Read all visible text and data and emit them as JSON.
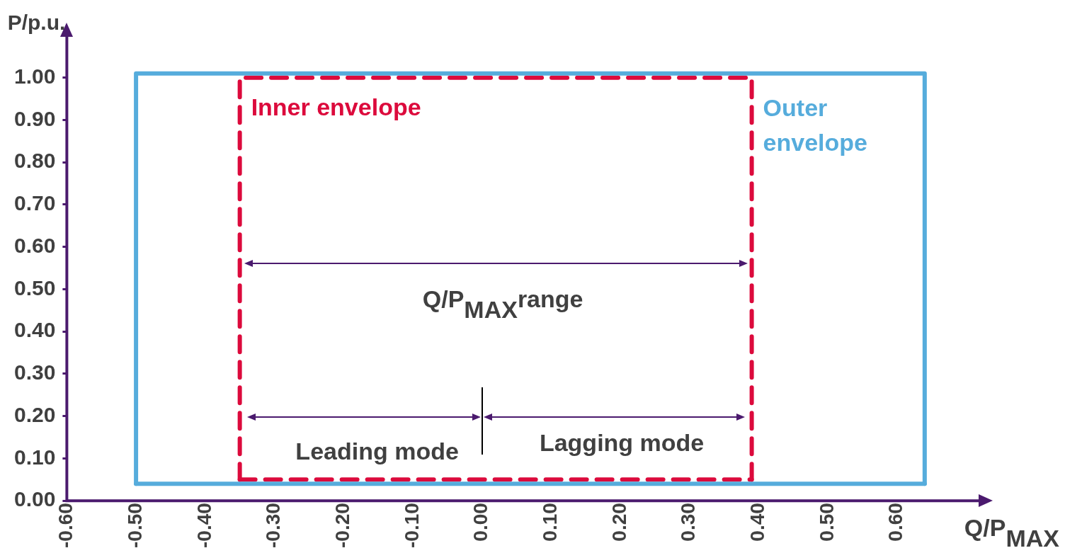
{
  "chart_data": {
    "type": "line",
    "xlabel": "Q/P$_{MAX}$",
    "ylabel": "P/p.u.",
    "xlim": [
      -0.6,
      0.72
    ],
    "xticks": [
      {
        "value": -0.6,
        "label": "-0.60"
      },
      {
        "value": -0.5,
        "label": "-0.50"
      },
      {
        "value": -0.4,
        "label": "-0.40"
      },
      {
        "value": -0.3,
        "label": "-0.30"
      },
      {
        "value": -0.2,
        "label": "-0.20"
      },
      {
        "value": -0.1,
        "label": "-0.10"
      },
      {
        "value": 0,
        "label": "0.00"
      },
      {
        "value": 0.1,
        "label": "0.10"
      },
      {
        "value": 0.2,
        "label": "0.20"
      },
      {
        "value": 0.3,
        "label": "0.30"
      },
      {
        "value": 0.4,
        "label": "0.40"
      },
      {
        "value": 0.5,
        "label": "0.50"
      },
      {
        "value": 0.6,
        "label": "0.60"
      }
    ],
    "ylim": [
      0,
      1.1
    ],
    "yticks": [
      {
        "value": 0,
        "label": "0.00"
      },
      {
        "value": 0.1,
        "label": "0.10"
      },
      {
        "value": 0.2,
        "label": "0.20"
      },
      {
        "value": 0.3,
        "label": "0.30"
      },
      {
        "value": 0.4,
        "label": "0.40"
      },
      {
        "value": 0.5,
        "label": "0.50"
      },
      {
        "value": 0.6,
        "label": "0.60"
      },
      {
        "value": 0.7,
        "label": "0.70"
      },
      {
        "value": 0.8,
        "label": "0.80"
      },
      {
        "value": 0.9,
        "label": "0.90"
      },
      {
        "value": 1,
        "label": "1.00"
      }
    ],
    "grid": false,
    "legend": false,
    "marker": "none",
    "series": [
      {
        "name": "Outer envelope",
        "color": "#56acdc",
        "line_style": "solid",
        "x": [
          -0.5,
          -0.5,
          0.64,
          0.64
        ],
        "values": [
          0.04,
          1.01,
          1.01,
          0.04
        ]
      },
      {
        "name": "Inner envelope",
        "color": "#dc0a3c",
        "line_style": "dashed",
        "x": [
          -0.35,
          -0.35,
          0.39,
          0.39
        ],
        "values": [
          0.05,
          1,
          1,
          0.05
        ]
      },
      {
        "color": "#56acdc",
        "line_style": "solid",
        "x": [
          -0.5,
          0.64
        ],
        "values": [
          0.04,
          0.04
        ]
      },
      {
        "color": "#dc0a3c",
        "line_style": "dashed",
        "x": [
          -0.35,
          0.39
        ],
        "values": [
          0.05,
          0.05
        ]
      }
    ],
    "annotations": [
      "Q/P$_{MAX}$range",
      "Leading mode",
      "Lagging mode"
    ]
  }
}
